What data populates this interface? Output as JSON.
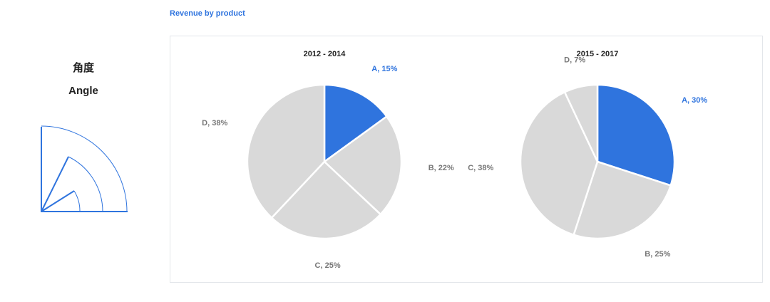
{
  "sidebar": {
    "title": "角度",
    "subtitle": "Angle"
  },
  "header": {
    "title": "Revenue by product"
  },
  "chart_data": [
    {
      "type": "pie",
      "title": "2012 - 2014",
      "categories": [
        "A",
        "B",
        "C",
        "D"
      ],
      "values": [
        15,
        22,
        25,
        38
      ],
      "value_labels": [
        "A, 15%",
        "B, 22%",
        "C, 25%",
        "D, 38%"
      ],
      "colors": [
        "#2f74de",
        "#d9d9d9",
        "#d9d9d9",
        "#d9d9d9"
      ],
      "label_colors": [
        "#2f74de",
        "#777777",
        "#777777",
        "#777777"
      ]
    },
    {
      "type": "pie",
      "title": "2015 - 2017",
      "categories": [
        "A",
        "B",
        "C",
        "D"
      ],
      "values": [
        30,
        25,
        38,
        7
      ],
      "value_labels": [
        "A, 30%",
        "B, 25%",
        "C, 38%",
        "D, 7%"
      ],
      "colors": [
        "#2f74de",
        "#d9d9d9",
        "#d9d9d9",
        "#d9d9d9"
      ],
      "label_colors": [
        "#2f74de",
        "#777777",
        "#777777",
        "#777777"
      ]
    }
  ]
}
